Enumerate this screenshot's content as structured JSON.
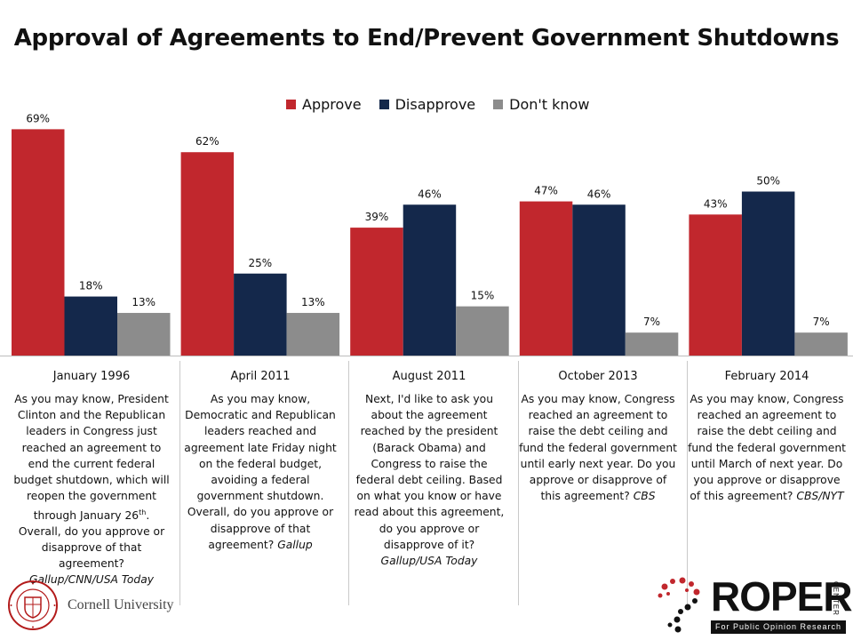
{
  "title": "Approval of Agreements to End/Prevent Government Shutdowns",
  "colors": {
    "approve": "#c1272d",
    "disapprove": "#14284b",
    "dontknow": "#8c8c8c"
  },
  "legend": [
    "Approve",
    "Disapprove",
    "Don't know"
  ],
  "chart_data": {
    "type": "bar",
    "title": "Approval of Agreements to End/Prevent Government Shutdowns",
    "categories": [
      "January 1996",
      "April 2011",
      "August 2011",
      "October 2013",
      "February 2014"
    ],
    "series": [
      {
        "name": "Approve",
        "values": [
          69,
          62,
          39,
          47,
          43
        ]
      },
      {
        "name": "Disapprove",
        "values": [
          18,
          25,
          46,
          46,
          50
        ]
      },
      {
        "name": "Don't know",
        "values": [
          13,
          13,
          15,
          7,
          7
        ]
      }
    ],
    "data_labels": [
      [
        "69%",
        "18%",
        "13%"
      ],
      [
        "62%",
        "25%",
        "13%"
      ],
      [
        "39%",
        "46%",
        "15%"
      ],
      [
        "47%",
        "46%",
        "7%"
      ],
      [
        "43%",
        "50%",
        "7%"
      ]
    ],
    "xlabel": "",
    "ylabel": "",
    "ylim": [
      0,
      100
    ],
    "grid": false,
    "legend_position": "top-center"
  },
  "questions": [
    {
      "text": "As you may know, President Clinton and the Republican leaders in Congress just reached an agreement to end the current federal budget shutdown, which will reopen the government through January 26th. Overall, do you approve or disapprove of that agreement?",
      "source": "Gallup/CNN/USA Today"
    },
    {
      "text": "As you may know, Democratic and Republican leaders reached and agreement late Friday night on the federal budget, avoiding a federal government shutdown. Overall, do you approve or disapprove of that agreement?",
      "source": "Gallup"
    },
    {
      "text": "Next, I'd like to ask you about the agreement reached by the president (Barack Obama) and Congress to raise the federal debt ceiling. Based on what you know or have read about this agreement, do you approve or disapprove of it?",
      "source": "Gallup/USA Today"
    },
    {
      "text": "As you may know, Congress reached an agreement to raise the debt ceiling and fund the federal government until early next year. Do you approve or disapprove of this agreement?",
      "source": "CBS"
    },
    {
      "text": "As you may know, Congress reached an agreement to raise the debt ceiling and fund the federal government until March of next year. Do you approve or disapprove of this agreement?",
      "source": "CBS/NYT"
    }
  ],
  "footer": {
    "cornell": "Cornell University",
    "seal_text": "CORNELL UNIVERSITY FOUNDED A.D. 1865",
    "roper": "ROPER",
    "roper_center": "CENTER",
    "roper_sub": "For Public Opinion Research"
  }
}
